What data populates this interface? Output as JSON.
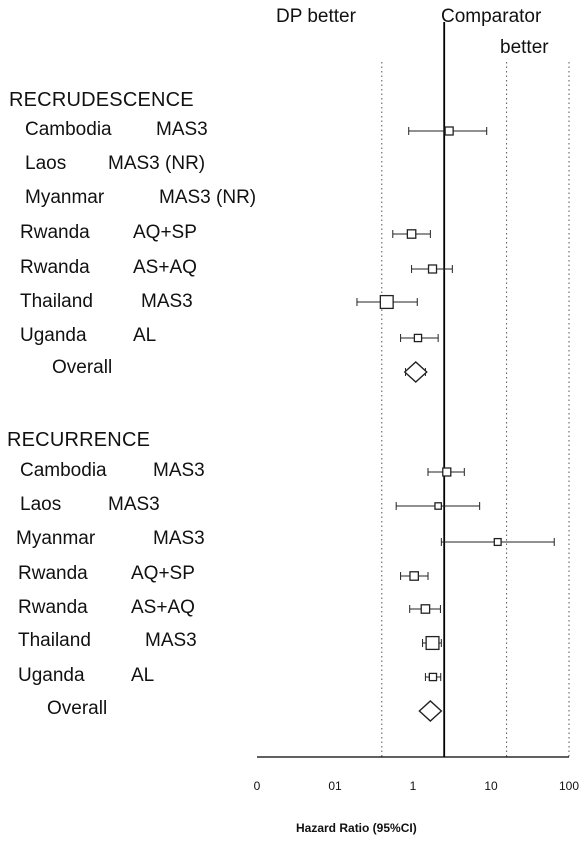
{
  "chart_data": {
    "type": "forest",
    "header_left": "DP better",
    "header_right_line1": "Comparator",
    "header_right_line2": "better",
    "xlabel": "Hazard Ratio (95%CI)",
    "x_scale": "log",
    "x_ticks": [
      "0",
      "01",
      "1",
      "10",
      "100"
    ],
    "xlim": [
      0.001,
      100
    ],
    "reference_line": 1,
    "dotted_lines": [
      0.1,
      10,
      100
    ],
    "groups": [
      {
        "title": "RECRUDESCENCE",
        "rows": [
          {
            "country": "Cambodia",
            "comparator": "MAS3",
            "hr": 1.2,
            "lo": 0.27,
            "hi": 4.8,
            "weight": 1
          },
          {
            "country": "Laos",
            "comparator": "MAS3  (NR)",
            "hr": null,
            "lo": null,
            "hi": null,
            "weight": 0
          },
          {
            "country": "Myanmar",
            "comparator": "MAS3 (NR)",
            "hr": null,
            "lo": null,
            "hi": null,
            "weight": 0
          },
          {
            "country": "Rwanda",
            "comparator": "AQ+SP",
            "hr": 0.3,
            "lo": 0.15,
            "hi": 0.6,
            "weight": 1.1
          },
          {
            "country": "Rwanda",
            "comparator": "AS+AQ",
            "hr": 0.65,
            "lo": 0.3,
            "hi": 1.35,
            "weight": 1
          },
          {
            "country": "Thailand",
            "comparator": "MAS3",
            "hr": 0.12,
            "lo": 0.04,
            "hi": 0.37,
            "weight": 2.2
          },
          {
            "country": "Uganda",
            "comparator": "AL",
            "hr": 0.38,
            "lo": 0.2,
            "hi": 0.8,
            "weight": 0.8
          }
        ],
        "overall": {
          "label": "Overall",
          "hr": 0.35,
          "lo": 0.24,
          "hi": 0.5
        }
      },
      {
        "title": "RECURRENCE",
        "rows": [
          {
            "country": "Cambodia",
            "comparator": "MAS3",
            "hr": 1.1,
            "lo": 0.55,
            "hi": 2.1,
            "weight": 1
          },
          {
            "country": "Laos",
            "comparator": "MAS3",
            "hr": 0.8,
            "lo": 0.17,
            "hi": 3.7,
            "weight": 0.6
          },
          {
            "country": "Myanmar",
            "comparator": "MAS3",
            "hr": 7.2,
            "lo": 0.9,
            "hi": 58,
            "weight": 0.7
          },
          {
            "country": "Rwanda",
            "comparator": "AQ+SP",
            "hr": 0.33,
            "lo": 0.2,
            "hi": 0.55,
            "weight": 1.1
          },
          {
            "country": "Rwanda",
            "comparator": "AS+AQ",
            "hr": 0.5,
            "lo": 0.28,
            "hi": 0.87,
            "weight": 1.1
          },
          {
            "country": "Thailand",
            "comparator": "MAS3",
            "hr": 0.65,
            "lo": 0.45,
            "hi": 0.9,
            "weight": 2.2
          },
          {
            "country": "Uganda",
            "comparator": "AL",
            "hr": 0.66,
            "lo": 0.5,
            "hi": 0.88,
            "weight": 0.8
          }
        ],
        "overall": {
          "label": "Overall",
          "hr": 0.6,
          "lo": 0.5,
          "hi": 0.74
        }
      }
    ]
  }
}
